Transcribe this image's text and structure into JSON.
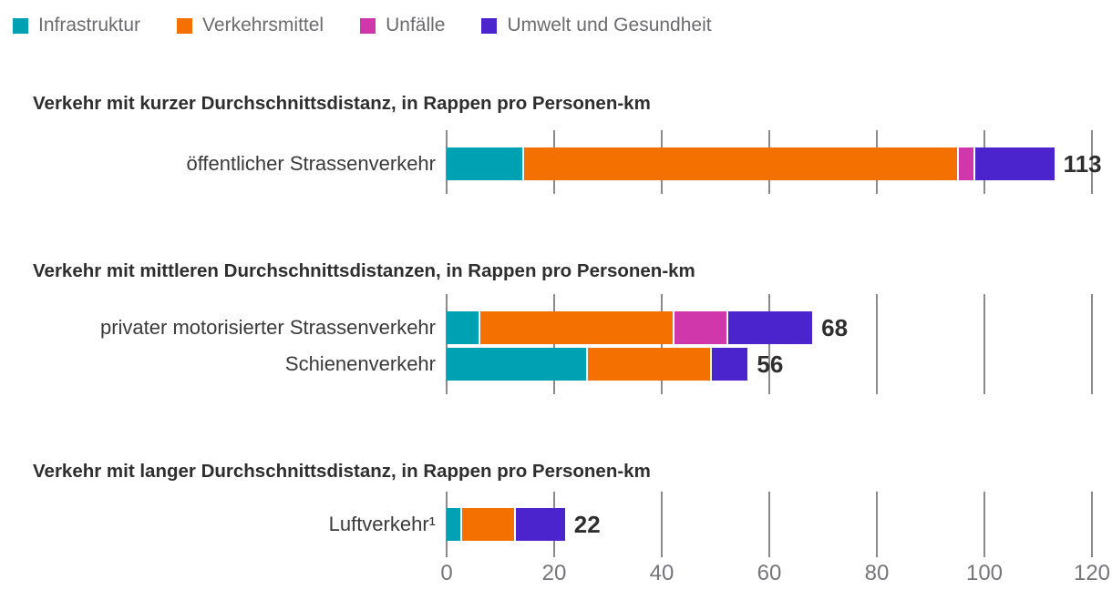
{
  "legend": {
    "items": [
      {
        "label": "Infrastruktur",
        "color": "#00A1B3",
        "slug": "infrastruktur"
      },
      {
        "label": "Verkehrsmittel",
        "color": "#F47000",
        "slug": "verkehrsmittel"
      },
      {
        "label": "Unfälle",
        "color": "#CF37AA",
        "slug": "unfaelle"
      },
      {
        "label": "Umwelt und Gesundheit",
        "color": "#4B24CE",
        "slug": "umwelt-und-gesundheit"
      }
    ]
  },
  "x_axis": {
    "max": 120,
    "ticks": [
      {
        "v": 0,
        "label": "0"
      },
      {
        "v": 20,
        "label": "20"
      },
      {
        "v": 40,
        "label": "40"
      },
      {
        "v": 60,
        "label": "60"
      },
      {
        "v": 80,
        "label": "80"
      },
      {
        "v": 100,
        "label": "100"
      },
      {
        "v": 120,
        "label": "120"
      }
    ]
  },
  "chart_data": [
    {
      "type": "bar",
      "stacked": true,
      "horizontal": true,
      "title": "Verkehr mit kurzer Durchschnittsdistanz, in Rappen pro Personen-km",
      "series_names": [
        "Infrastruktur",
        "Verkehrsmittel",
        "Unfälle",
        "Umwelt und Gesundheit"
      ],
      "xlim": [
        0,
        120
      ],
      "xticks": [
        0,
        20,
        40,
        60,
        80,
        100,
        120
      ],
      "grid": true,
      "rows": [
        {
          "category": "öffentlicher Strassenverkehr",
          "values": [
            14,
            81,
            3,
            15
          ],
          "total": 113,
          "total_label": "113"
        }
      ]
    },
    {
      "type": "bar",
      "stacked": true,
      "horizontal": true,
      "title": "Verkehr mit mittleren Durchschnittsdistanzen, in Rappen pro Personen-km",
      "series_names": [
        "Infrastruktur",
        "Verkehrsmittel",
        "Unfälle",
        "Umwelt und Gesundheit"
      ],
      "xlim": [
        0,
        120
      ],
      "xticks": [
        0,
        20,
        40,
        60,
        80,
        100,
        120
      ],
      "grid": true,
      "rows": [
        {
          "category": "privater motorisierter Strassenverkehr",
          "values": [
            6,
            36,
            10,
            16
          ],
          "total": 68,
          "total_label": "68"
        },
        {
          "category": "Schienenverkehr",
          "values": [
            26,
            23,
            0,
            7
          ],
          "total": 56,
          "total_label": "56"
        }
      ]
    },
    {
      "type": "bar",
      "stacked": true,
      "horizontal": true,
      "title": "Verkehr mit langer Durchschnittsdistanz, in Rappen pro Personen-km",
      "series_names": [
        "Infrastruktur",
        "Verkehrsmittel",
        "Unfälle",
        "Umwelt und Gesundheit"
      ],
      "xlim": [
        0,
        120
      ],
      "xticks": [
        0,
        20,
        40,
        60,
        80,
        100,
        120
      ],
      "grid": true,
      "rows": [
        {
          "category": "Luftverkehr¹",
          "values": [
            2.5,
            10,
            0,
            9.5
          ],
          "total": 22,
          "total_label": "22"
        }
      ]
    }
  ]
}
